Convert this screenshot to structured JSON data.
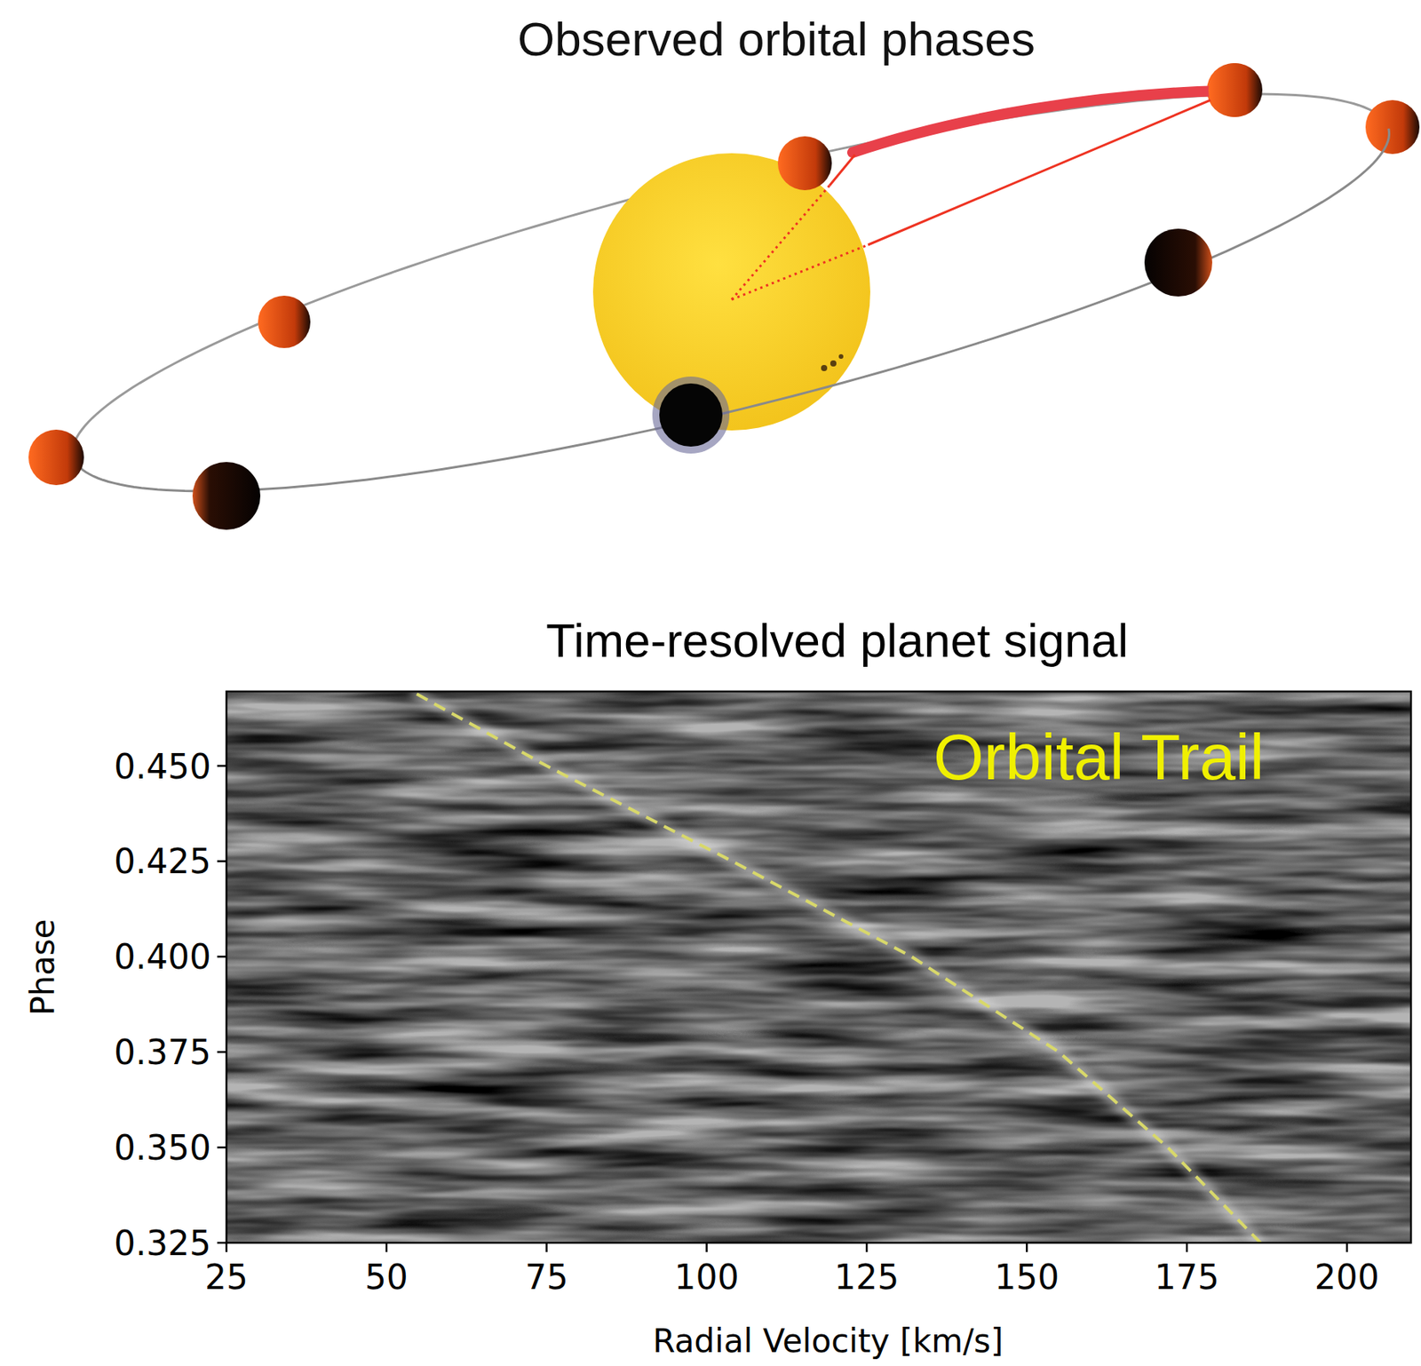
{
  "diagram": {
    "title": "Observed orbital phases"
  },
  "chart_data": {
    "type": "line",
    "title": "Time-resolved planet signal",
    "x_label": "Radial Velocity [km/s]",
    "y_label": "Phase",
    "xlim": [
      25,
      210
    ],
    "ylim": [
      0.325,
      0.4695
    ],
    "xticks": [
      25,
      50,
      75,
      100,
      125,
      150,
      175,
      200
    ],
    "yticks": [
      0.325,
      {
        "value": 0.35,
        "label": "0.350"
      },
      0.375,
      {
        "value": 0.4,
        "label": "0.400"
      },
      0.425,
      {
        "value": 0.45,
        "label": "0.450"
      }
    ],
    "grid": false,
    "x": [
      186.5,
      172,
      155,
      132,
      104,
      75,
      54
    ],
    "series": [
      {
        "color": "#d8d86a",
        "line_style": "dashed",
        "values": [
          0.325,
          0.35,
          0.375,
          0.4,
          0.425,
          0.45,
          0.4695
        ]
      }
    ],
    "annotations": [
      {
        "text": "Orbital Trail",
        "color": "#f0f000"
      }
    ]
  }
}
